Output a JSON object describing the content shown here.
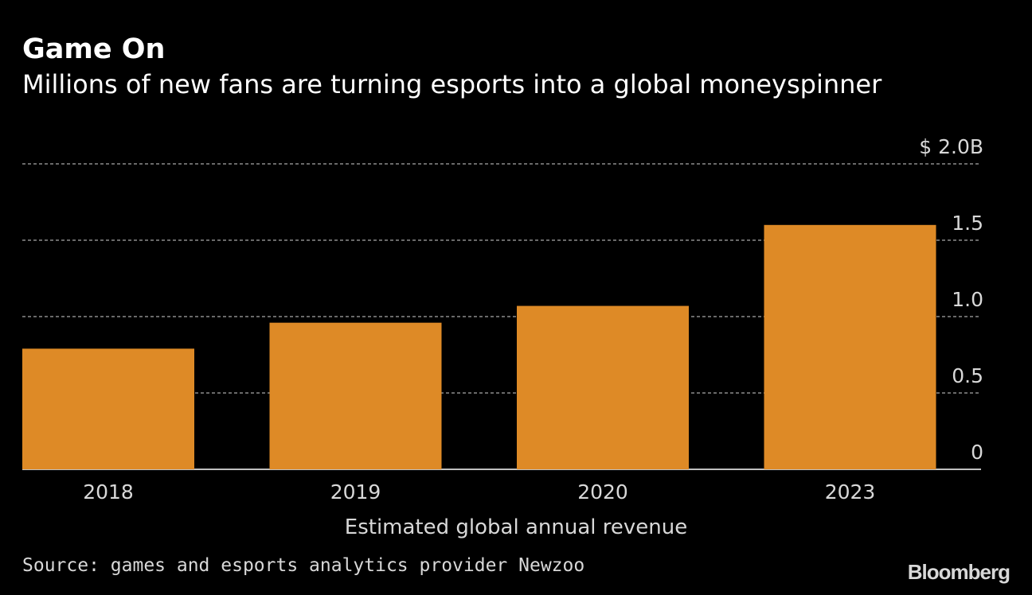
{
  "header": {
    "title": "Game On",
    "subtitle": "Millions of new fans are turning esports into a global moneyspinner"
  },
  "footer": {
    "source": "Source: games and esports analytics provider Newzoo",
    "logo": "Bloomberg"
  },
  "colors": {
    "background": "#000000",
    "bar": "#de8a26",
    "grid": "#8c8c8c",
    "text": "#d8d8d8"
  },
  "chart_data": {
    "type": "bar",
    "title": "Game On",
    "subtitle": "Millions of new fans are turning esports into a global moneyspinner",
    "xlabel": "Estimated global annual revenue",
    "ylabel": "",
    "categories": [
      "2018",
      "2019",
      "2020",
      "2023"
    ],
    "series": [
      {
        "values": [
          0.79,
          0.96,
          1.07,
          1.6
        ]
      }
    ],
    "unit": "billion USD",
    "ylim": [
      0,
      2.0
    ],
    "yticks": [
      0,
      0.5,
      1.0,
      1.5,
      2.0
    ],
    "ytick_labels": [
      "0",
      "0.5",
      "1.0",
      "1.5",
      "$ 2.0B"
    ],
    "y_axis_position": "right",
    "grid": true,
    "legend": "none"
  }
}
